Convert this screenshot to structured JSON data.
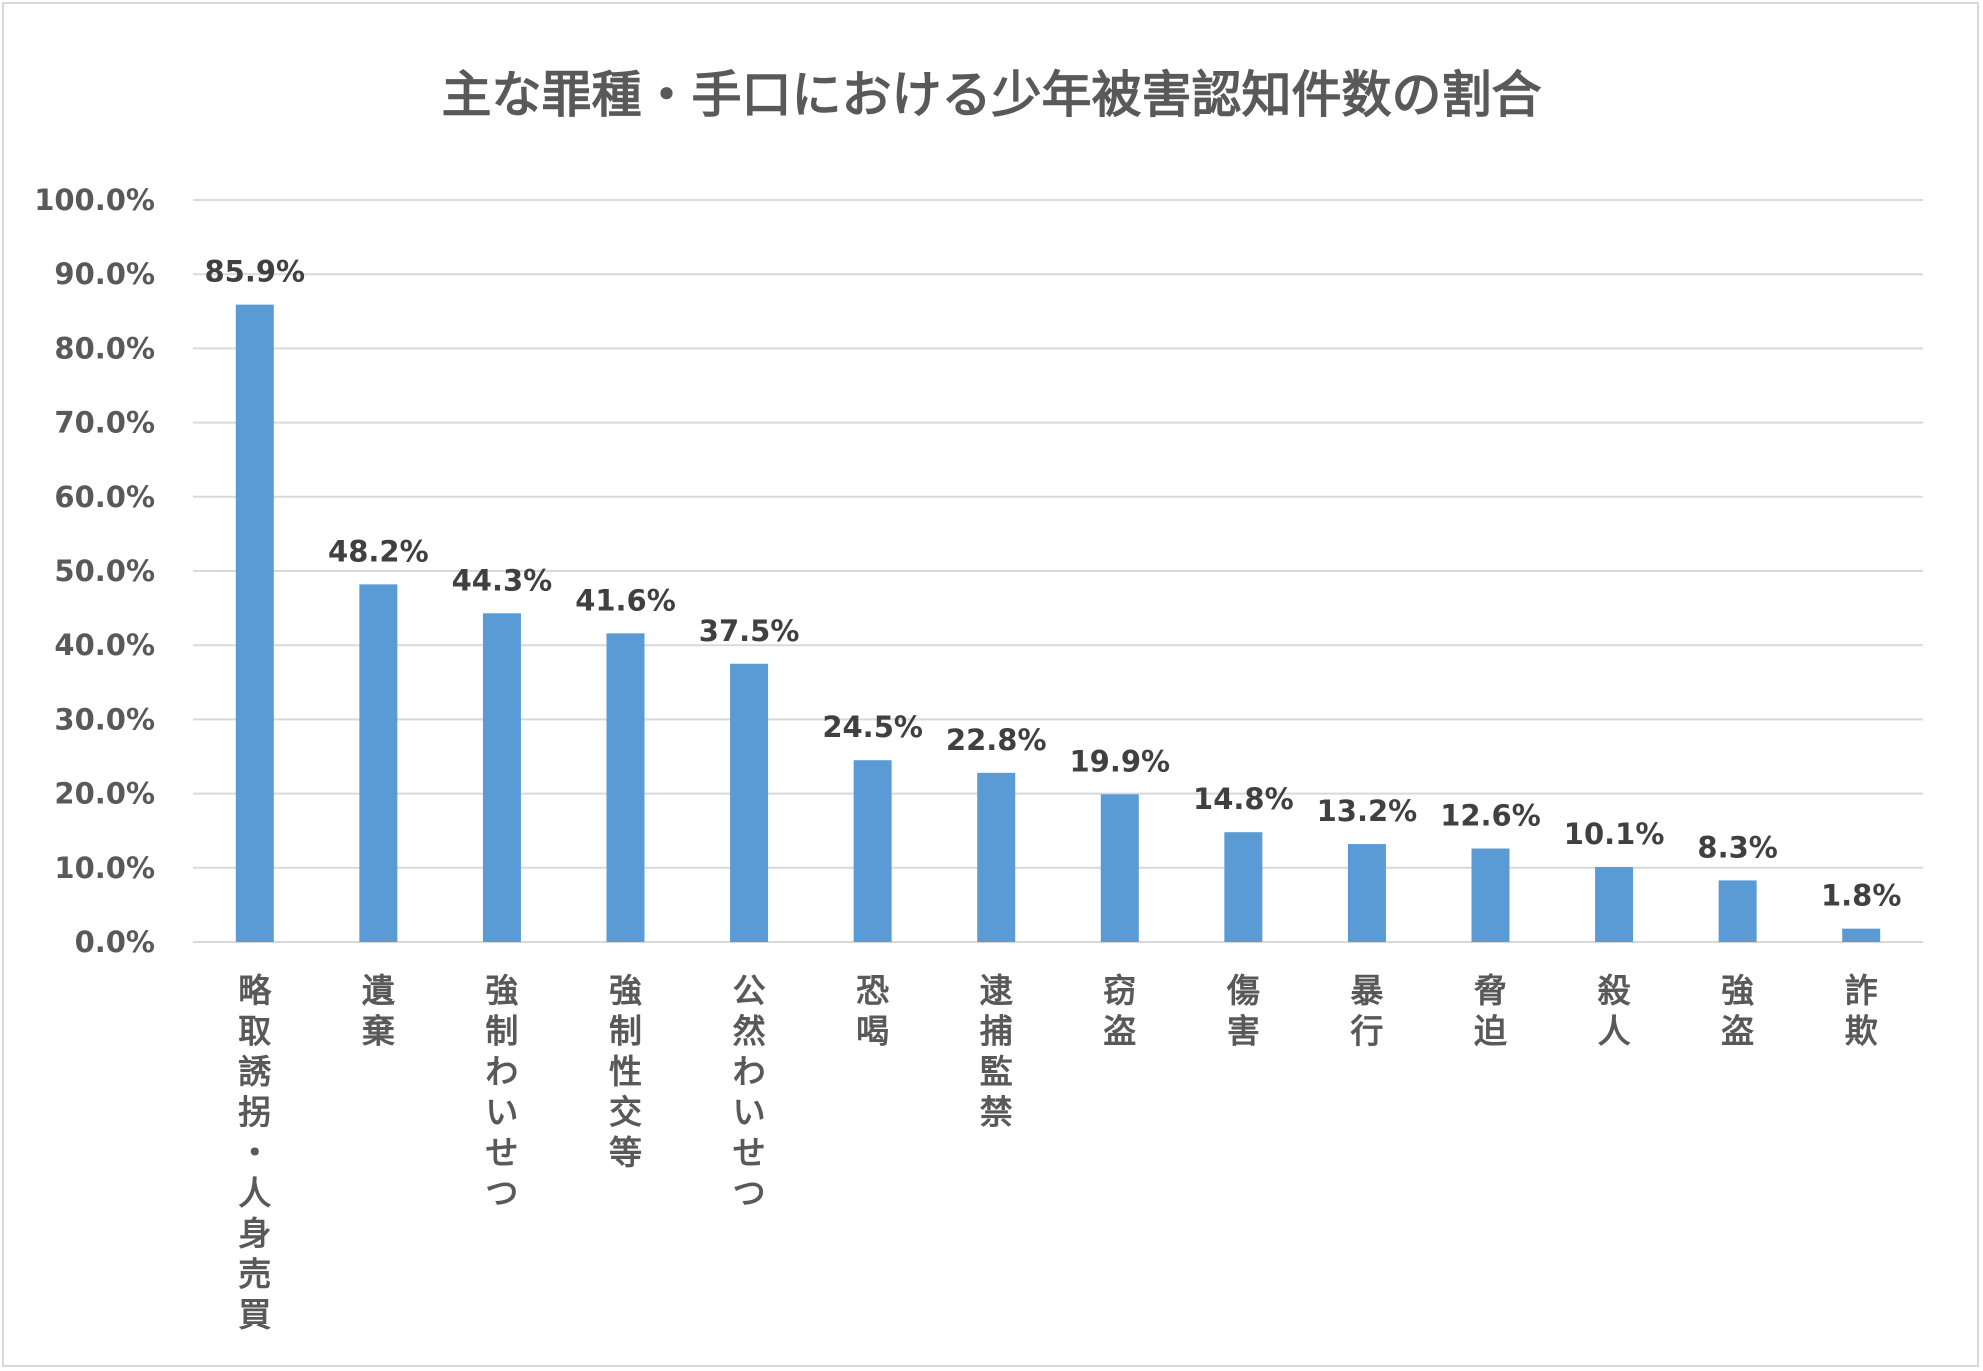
{
  "chart_data": {
    "type": "bar",
    "title": "主な罪種・手口における少年被害認知件数の割合",
    "categories": [
      "略取誘拐・人身売買",
      "遺棄",
      "強制わいせつ",
      "強制性交等",
      "公然わいせつ",
      "恐喝",
      "逮捕監禁",
      "窃盗",
      "傷害",
      "暴行",
      "脅迫",
      "殺人",
      "強盗",
      "詐欺"
    ],
    "values": [
      85.9,
      48.2,
      44.3,
      41.6,
      37.5,
      24.5,
      22.8,
      19.9,
      14.8,
      13.2,
      12.6,
      10.1,
      8.3,
      1.8
    ],
    "data_labels": [
      "85.9%",
      "48.2%",
      "44.3%",
      "41.6%",
      "37.5%",
      "24.5%",
      "22.8%",
      "19.9%",
      "14.8%",
      "13.2%",
      "12.6%",
      "10.1%",
      "8.3%",
      "1.8%"
    ],
    "ylim": [
      0,
      100
    ],
    "yticks": [
      "0.0%",
      "10.0%",
      "20.0%",
      "30.0%",
      "40.0%",
      "50.0%",
      "60.0%",
      "70.0%",
      "80.0%",
      "90.0%",
      "100.0%"
    ],
    "grid": true,
    "bar_color": "#5b9bd5",
    "grid_color": "#d9d9d9"
  }
}
